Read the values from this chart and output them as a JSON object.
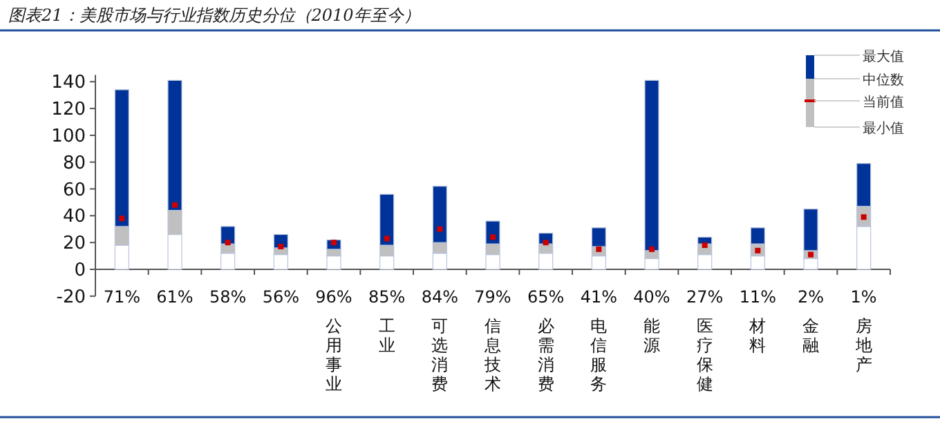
{
  "chart_data": {
    "type": "bar",
    "stacked": true,
    "title": "图表21：美股市场与行业指数历史分位（2010年至今）",
    "categories": [
      null,
      null,
      null,
      null,
      "公用事业",
      "工业",
      "可选消费",
      "信息技术",
      "必需消费",
      "电信服务",
      "能源",
      "医疗保健",
      "材料",
      "金融",
      "房地产"
    ],
    "series": [
      {
        "color": "#ffffff",
        "values": [
          18,
          26,
          12,
          11,
          10,
          10,
          12,
          11,
          12,
          10,
          8,
          11,
          10,
          8,
          32
        ]
      },
      {
        "color": "#c0c0c0",
        "values": [
          14,
          18,
          7,
          5,
          5,
          8,
          8,
          8,
          7,
          7,
          6,
          8,
          9,
          6,
          15
        ]
      },
      {
        "color": "#003399",
        "values": [
          102,
          97,
          13,
          10,
          7,
          38,
          42,
          17,
          8,
          14,
          127,
          5,
          12,
          31,
          32
        ]
      },
      {
        "type": "scatter",
        "marker": "square",
        "color": "#cc0000",
        "values": [
          38,
          48,
          20,
          17,
          20,
          23,
          30,
          24,
          20,
          15,
          15,
          18,
          14,
          11,
          39
        ]
      }
    ],
    "ylim": [
      -20,
      145
    ],
    "yticks": [
      -20,
      0,
      20,
      40,
      60,
      80,
      100,
      120,
      140
    ],
    "annotations": [
      "71%",
      "61%",
      "58%",
      "56%",
      "96%",
      "85%",
      "84%",
      "79%",
      "65%",
      "41%",
      "40%",
      "27%",
      "11%",
      "2%",
      "1%",
      "最大值",
      "中位数",
      "当前值",
      "最小值"
    ]
  }
}
